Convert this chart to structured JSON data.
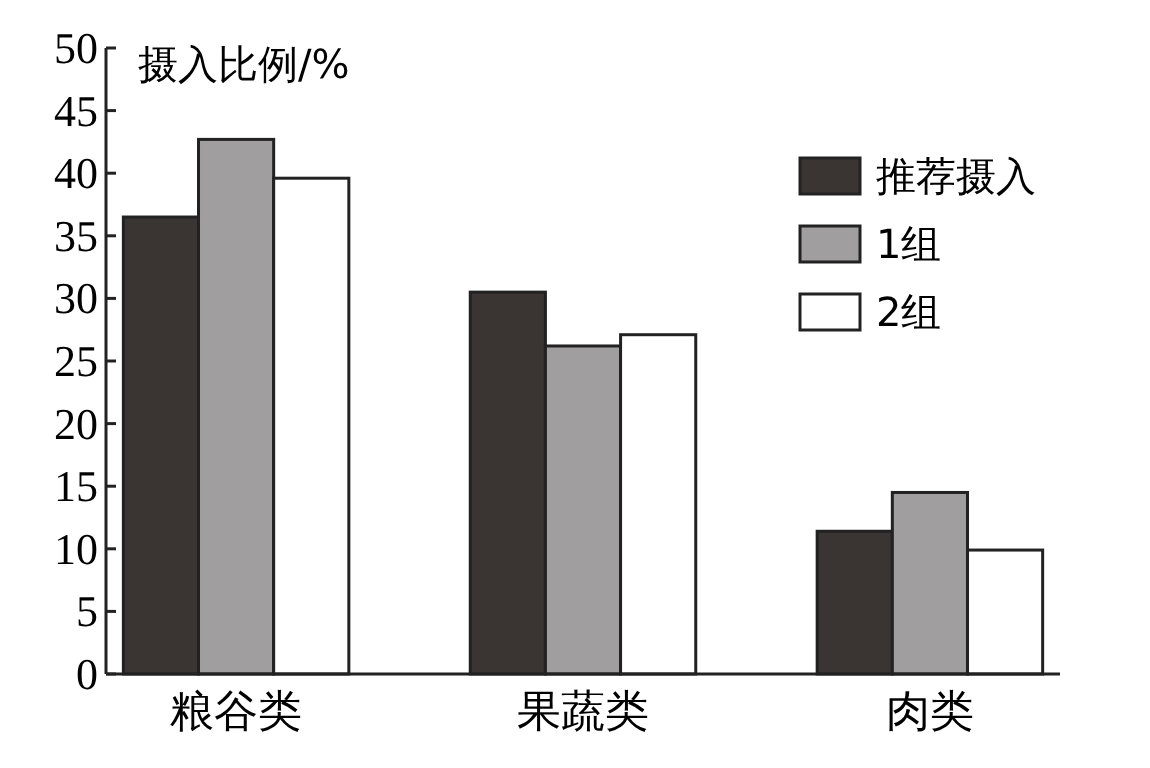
{
  "chart_data": {
    "type": "bar",
    "ylabel": "摄入比例/%",
    "categories": [
      "粮谷类",
      "果蔬类",
      "肉类"
    ],
    "series": [
      {
        "name": "推荐摄入",
        "color": "#3a3533",
        "values": [
          36.5,
          30.5,
          11.4
        ]
      },
      {
        "name": "1组",
        "color": "#a09e9e",
        "values": [
          42.7,
          26.2,
          14.5
        ]
      },
      {
        "name": "2组",
        "color": "#ffffff",
        "values": [
          39.6,
          27.1,
          9.9
        ]
      }
    ],
    "ylim": [
      0,
      50
    ],
    "yticks": [
      0,
      5,
      10,
      15,
      20,
      25,
      30,
      35,
      40,
      45,
      50
    ],
    "legend": "right",
    "grid": false
  }
}
